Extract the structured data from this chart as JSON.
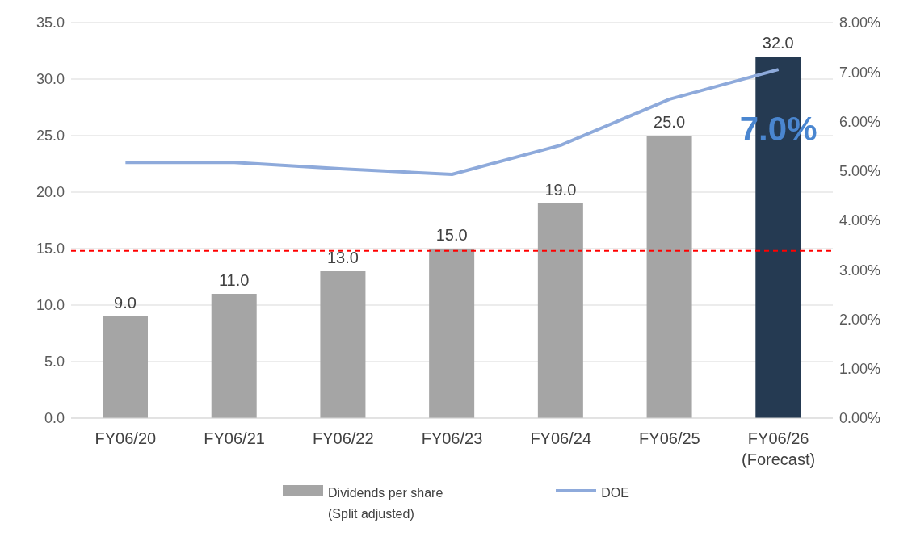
{
  "chart_data": {
    "type": "bar",
    "categories": [
      "FY06/20",
      "FY06/21",
      "FY06/22",
      "FY06/23",
      "FY06/24",
      "FY06/25",
      "FY06/26\n(Forecast)"
    ],
    "series": [
      {
        "name": "Dividends per share\n(Split adjusted)",
        "color": "#a5a5a5",
        "colors": [
          "#a5a5a5",
          "#a5a5a5",
          "#a5a5a5",
          "#a5a5a5",
          "#a5a5a5",
          "#a5a5a5",
          "#253a52"
        ],
        "values": [
          9,
          11,
          13,
          15,
          19,
          25,
          32
        ],
        "value_labels": [
          "9.0",
          "11.0",
          "13.0",
          "15.0",
          "19.0",
          "25.0",
          "32.0"
        ]
      },
      {
        "name": "DOE",
        "type": "line",
        "axis": "y2",
        "color": "#8eaadb",
        "values": [
          5.17,
          5.17,
          5.04,
          4.93,
          5.52,
          6.45,
          7.05
        ]
      }
    ],
    "ylim": [
      0,
      35
    ],
    "yticks": [
      {
        "value": 0,
        "label": "0.0"
      },
      {
        "value": 5,
        "label": "5.0"
      },
      {
        "value": 10,
        "label": "10.0"
      },
      {
        "value": 15,
        "label": "15.0"
      },
      {
        "value": 20,
        "label": "20.0"
      },
      {
        "value": 25,
        "label": "25.0"
      },
      {
        "value": 30,
        "label": "30.0"
      },
      {
        "value": 35,
        "label": "35.0"
      }
    ],
    "y2lim": [
      0,
      8
    ],
    "y2ticks": [
      {
        "value": 0,
        "label": "0.00%"
      },
      {
        "value": 1,
        "label": "1.00%"
      },
      {
        "value": 2,
        "label": "2.00%"
      },
      {
        "value": 3,
        "label": "3.00%"
      },
      {
        "value": 4,
        "label": "4.00%"
      },
      {
        "value": 5,
        "label": "5.00%"
      },
      {
        "value": 6,
        "label": "6.00%"
      },
      {
        "value": 7,
        "label": "7.00%"
      },
      {
        "value": 8,
        "label": "8.00%"
      }
    ],
    "ref_lines": [
      {
        "axis": "y",
        "value": 14.8,
        "color": "#ff0000",
        "line_style": "dashed"
      }
    ],
    "annotations": [
      "7.0%"
    ],
    "grid": "y",
    "legend": "bottom",
    "line_style": "solid",
    "marker": "none"
  }
}
